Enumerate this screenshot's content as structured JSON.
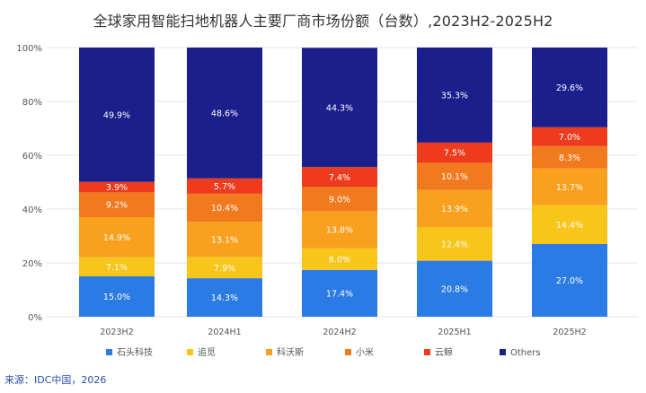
{
  "chart_data": {
    "type": "bar",
    "stacked": true,
    "title": "全球家用智能扫地机器人主要厂商市场份额（台数）,2023H2-2025H2",
    "categories": [
      "2023H2",
      "2024H1",
      "2024H2",
      "2025H1",
      "2025H2"
    ],
    "ylim": [
      0,
      100
    ],
    "yticks": [
      "0%",
      "20%",
      "40%",
      "60%",
      "80%",
      "100%"
    ],
    "grid": true,
    "legend_position": "bottom",
    "series": [
      {
        "name": "石头科技",
        "color": "#2b7be4",
        "values": [
          15.0,
          14.3,
          17.4,
          20.8,
          27.0
        ],
        "labels": [
          "15.0%",
          "14.3%",
          "17.4%",
          "20.8%",
          "27.0%"
        ]
      },
      {
        "name": "追觅",
        "color": "#f8c51a",
        "values": [
          7.1,
          7.9,
          8.0,
          12.4,
          14.4
        ],
        "labels": [
          "7.1%",
          "7.9%",
          "8.0%",
          "12.4%",
          "14.4%"
        ]
      },
      {
        "name": "科沃斯",
        "color": "#f9a01e",
        "values": [
          14.9,
          13.1,
          13.8,
          13.9,
          13.7
        ],
        "labels": [
          "14.9%",
          "13.1%",
          "13.8%",
          "13.9%",
          "13.7%"
        ]
      },
      {
        "name": "小米",
        "color": "#f07a1d",
        "values": [
          9.2,
          10.4,
          9.0,
          10.1,
          8.3
        ],
        "labels": [
          "9.2%",
          "10.4%",
          "9.0%",
          "10.1%",
          "8.3%"
        ]
      },
      {
        "name": "云鲸",
        "color": "#ee3a1d",
        "values": [
          3.9,
          5.7,
          7.4,
          7.5,
          7.0
        ],
        "labels": [
          "3.9%",
          "5.7%",
          "7.4%",
          "7.5%",
          "7.0%"
        ]
      },
      {
        "name": "Others",
        "color": "#1a1f8c",
        "values": [
          49.9,
          48.6,
          44.3,
          35.3,
          29.6
        ],
        "labels": [
          "49.9%",
          "48.6%",
          "44.3%",
          "35.3%",
          "29.6%"
        ]
      }
    ]
  },
  "source": "来源：IDC中国，2026",
  "colors": {
    "axis_text": "#555555",
    "grid": "#e6e6e6",
    "label_text": "#ffffff"
  }
}
